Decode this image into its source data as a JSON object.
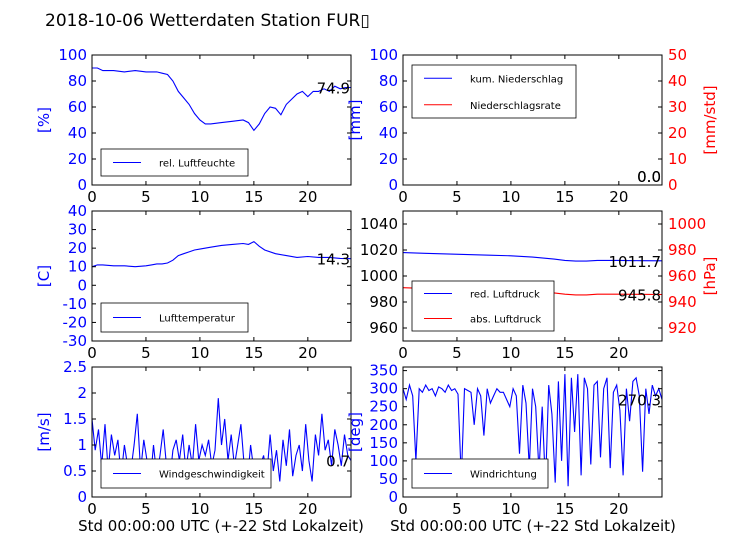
{
  "figure": {
    "title": "2018-10-06 Wetterdaten Station FUR▯"
  },
  "colors": {
    "primary": "#0000ff",
    "secondary": "#ff0000",
    "axis": "#000000"
  },
  "xaxis": {
    "range": [
      0,
      24
    ],
    "ticks": [
      0,
      5,
      10,
      15,
      20
    ],
    "label": "Std 00:00:00 UTC (+-22 Std Lokalzeit)"
  },
  "chart_data": [
    {
      "id": "humidity",
      "type": "line",
      "ylabel": "[%]",
      "ylim": [
        0,
        100
      ],
      "yticks": [
        0,
        20,
        40,
        60,
        80,
        100
      ],
      "current": "74.9",
      "legend": {
        "position": "lower-left"
      },
      "series": [
        {
          "name": "rel. Luftfeuchte",
          "color": "#0000ff",
          "x": [
            0,
            0.5,
            1,
            2,
            3,
            4,
            5,
            6,
            6.5,
            7,
            7.5,
            8,
            8.5,
            9,
            9.5,
            10,
            10.5,
            11,
            12,
            13,
            14,
            14.5,
            15,
            15.5,
            16,
            16.5,
            17,
            17.5,
            18,
            19,
            19.5,
            20,
            20.5,
            21,
            21.5,
            22,
            22.5,
            23,
            23.5,
            24
          ],
          "y": [
            90,
            90,
            88,
            88,
            87,
            88,
            87,
            87,
            86,
            85,
            80,
            72,
            67,
            62,
            55,
            50,
            47,
            47,
            48,
            49,
            50,
            48,
            42,
            47,
            55,
            60,
            59,
            54,
            62,
            70,
            72,
            68,
            72,
            72,
            74,
            72,
            76,
            74,
            75,
            75
          ]
        }
      ]
    },
    {
      "id": "precip",
      "type": "line",
      "ylabel": "[mm]",
      "ylim": [
        0,
        100
      ],
      "yticks": [
        0,
        20,
        40,
        60,
        80,
        100
      ],
      "ylabel_right": "[mm/std]",
      "ylim_right": [
        0,
        50
      ],
      "yticks_right": [
        0,
        10,
        20,
        30,
        40,
        50
      ],
      "current": "0.0",
      "current_right": "0.0",
      "legend": {
        "position": "upper-left"
      },
      "series": [
        {
          "name": "kum. Niederschlag",
          "color": "#0000ff",
          "axis": "left",
          "x": [
            0,
            24
          ],
          "y": [
            0,
            0
          ]
        },
        {
          "name": "Niederschlagsrate",
          "color": "#ff0000",
          "axis": "right",
          "x": [
            0,
            24
          ],
          "y": [
            0,
            0
          ]
        }
      ]
    },
    {
      "id": "temperature",
      "type": "line",
      "ylabel": "[C]",
      "ylim": [
        -30,
        40
      ],
      "yticks": [
        -30,
        -20,
        -10,
        0,
        10,
        20,
        30,
        40
      ],
      "current": "14.3",
      "legend": {
        "position": "lower-left"
      },
      "series": [
        {
          "name": "Lufttemperatur",
          "color": "#0000ff",
          "x": [
            0,
            0.5,
            1,
            2,
            3,
            4,
            5,
            5.5,
            6,
            6.5,
            7,
            7.5,
            8,
            8.5,
            9,
            9.5,
            10,
            11,
            12,
            13,
            14,
            14.5,
            15,
            15.5,
            16,
            17,
            18,
            19,
            20,
            21,
            22,
            23,
            24
          ],
          "y": [
            10,
            11,
            11,
            10.5,
            10.5,
            10,
            10.5,
            11,
            11.5,
            11.5,
            12,
            13.5,
            16,
            17,
            18,
            19,
            19.5,
            20.5,
            21.5,
            22,
            22.5,
            22,
            23.5,
            21,
            19,
            17,
            16,
            15,
            15.5,
            15,
            15,
            14.5,
            14.3
          ]
        }
      ]
    },
    {
      "id": "pressure",
      "type": "line",
      "ylabel_right": "[hPa]",
      "ylim": [
        950,
        1050
      ],
      "yticks": [
        960,
        980,
        1000,
        1020,
        1040
      ],
      "ylim_right": [
        910,
        1010
      ],
      "yticks_right": [
        920,
        940,
        960,
        980,
        1000
      ],
      "current": "1011.7",
      "current_right": "945.8",
      "legend": {
        "position": "lower-left"
      },
      "series": [
        {
          "name": "red. Luftdruck",
          "color": "#0000ff",
          "axis": "left",
          "x": [
            0,
            2,
            4,
            6,
            8,
            10,
            12,
            14,
            15,
            16,
            17,
            18,
            20,
            22,
            24
          ],
          "y": [
            1018,
            1017.5,
            1017,
            1016.5,
            1016,
            1015.5,
            1014.5,
            1013,
            1012,
            1011.5,
            1011.5,
            1012,
            1012,
            1011.8,
            1011.7
          ]
        },
        {
          "name": "abs. Luftdruck",
          "color": "#ff0000",
          "axis": "right",
          "x": [
            0,
            2,
            4,
            6,
            8,
            10,
            12,
            14,
            15,
            16,
            17,
            18,
            20,
            22,
            24
          ],
          "y": [
            951,
            950.5,
            950,
            950,
            949.5,
            949.5,
            948.5,
            947,
            946,
            945.5,
            945.5,
            946,
            946,
            945.9,
            945.8
          ]
        }
      ]
    },
    {
      "id": "windspeed",
      "type": "line",
      "ylabel": "[m/s]",
      "ylim": [
        0,
        2.5
      ],
      "yticks": [
        0,
        0.5,
        1.0,
        1.5,
        2.0,
        2.5
      ],
      "current": "0.7",
      "legend": {
        "position": "lower-left"
      },
      "series": [
        {
          "name": "Windgeschwindigkeit",
          "color": "#0000ff",
          "x": [
            0,
            0.3,
            0.6,
            0.9,
            1.2,
            1.5,
            1.8,
            2.1,
            2.4,
            2.7,
            3.0,
            3.3,
            3.6,
            3.9,
            4.2,
            4.5,
            4.8,
            5.1,
            5.4,
            5.7,
            6.0,
            6.3,
            6.6,
            6.9,
            7.2,
            7.5,
            7.8,
            8.1,
            8.4,
            8.7,
            9.0,
            9.3,
            9.6,
            9.9,
            10.2,
            10.5,
            10.8,
            11.1,
            11.4,
            11.7,
            12.0,
            12.3,
            12.6,
            12.9,
            13.2,
            13.5,
            13.8,
            14.1,
            14.4,
            14.7,
            15.0,
            15.3,
            15.6,
            15.9,
            16.2,
            16.5,
            16.8,
            17.1,
            17.4,
            17.7,
            18.0,
            18.3,
            18.6,
            18.9,
            19.2,
            19.5,
            19.8,
            20.1,
            20.4,
            20.7,
            21.0,
            21.3,
            21.6,
            21.9,
            22.2,
            22.5,
            22.8,
            23.1,
            23.4,
            23.7,
            24.0
          ],
          "y": [
            1.5,
            0.9,
            1.3,
            0.6,
            1.4,
            0.5,
            1.2,
            0.8,
            1.1,
            0.4,
            1.0,
            0.6,
            0.5,
            1.0,
            1.6,
            0.5,
            1.1,
            0.7,
            0.3,
            1.0,
            0.4,
            0.8,
            1.3,
            0.6,
            0.3,
            0.9,
            1.1,
            0.7,
            1.2,
            0.5,
            1.0,
            0.6,
            1.4,
            0.7,
            1.0,
            0.8,
            1.1,
            0.6,
            0.9,
            1.9,
            1.0,
            1.5,
            0.7,
            1.2,
            0.6,
            1.0,
            1.4,
            0.6,
            0.3,
            1.0,
            0.5,
            0.3,
            0.6,
            0.8,
            0.4,
            1.2,
            0.5,
            0.9,
            0.3,
            1.1,
            0.6,
            1.3,
            0.4,
            0.8,
            1.0,
            0.5,
            1.4,
            0.7,
            0.3,
            1.2,
            0.8,
            1.6,
            0.9,
            1.1,
            0.6,
            1.3,
            1.0,
            0.6,
            1.2,
            0.8,
            0.7
          ]
        }
      ]
    },
    {
      "id": "winddir",
      "type": "line",
      "ylabel": "[deg]",
      "ylim": [
        0,
        360
      ],
      "yticks": [
        0,
        50,
        100,
        150,
        200,
        250,
        300,
        350
      ],
      "current": "270.3",
      "legend": {
        "position": "lower-left"
      },
      "series": [
        {
          "name": "Windrichtung",
          "color": "#0000ff",
          "x": [
            0,
            0.3,
            0.6,
            0.9,
            1.2,
            1.5,
            1.8,
            2.1,
            2.4,
            2.7,
            3.0,
            3.3,
            3.6,
            3.9,
            4.2,
            4.5,
            4.8,
            5.1,
            5.4,
            5.7,
            6.0,
            6.3,
            6.6,
            6.9,
            7.2,
            7.5,
            7.8,
            8.1,
            8.4,
            8.7,
            9.0,
            9.3,
            9.6,
            9.9,
            10.2,
            10.5,
            10.8,
            11.1,
            11.4,
            11.7,
            12.0,
            12.3,
            12.6,
            12.9,
            13.2,
            13.5,
            13.8,
            14.1,
            14.4,
            14.7,
            15.0,
            15.3,
            15.6,
            15.9,
            16.2,
            16.5,
            16.8,
            17.1,
            17.4,
            17.7,
            18.0,
            18.3,
            18.6,
            18.9,
            19.2,
            19.5,
            19.8,
            20.1,
            20.4,
            20.7,
            21.0,
            21.3,
            21.6,
            21.9,
            22.2,
            22.5,
            22.8,
            23.1,
            23.4,
            23.7,
            24.0
          ],
          "y": [
            300,
            270,
            310,
            280,
            100,
            300,
            290,
            310,
            295,
            300,
            280,
            305,
            300,
            290,
            310,
            295,
            300,
            285,
            50,
            300,
            295,
            290,
            200,
            300,
            280,
            170,
            300,
            260,
            280,
            300,
            290,
            290,
            270,
            250,
            300,
            280,
            120,
            310,
            260,
            80,
            300,
            250,
            70,
            250,
            30,
            310,
            230,
            40,
            320,
            100,
            340,
            30,
            330,
            180,
            340,
            60,
            330,
            300,
            90,
            310,
            320,
            110,
            300,
            330,
            80,
            290,
            310,
            240,
            60,
            300,
            210,
            320,
            330,
            280,
            70,
            300,
            230,
            310,
            280,
            300,
            270
          ]
        }
      ]
    }
  ]
}
